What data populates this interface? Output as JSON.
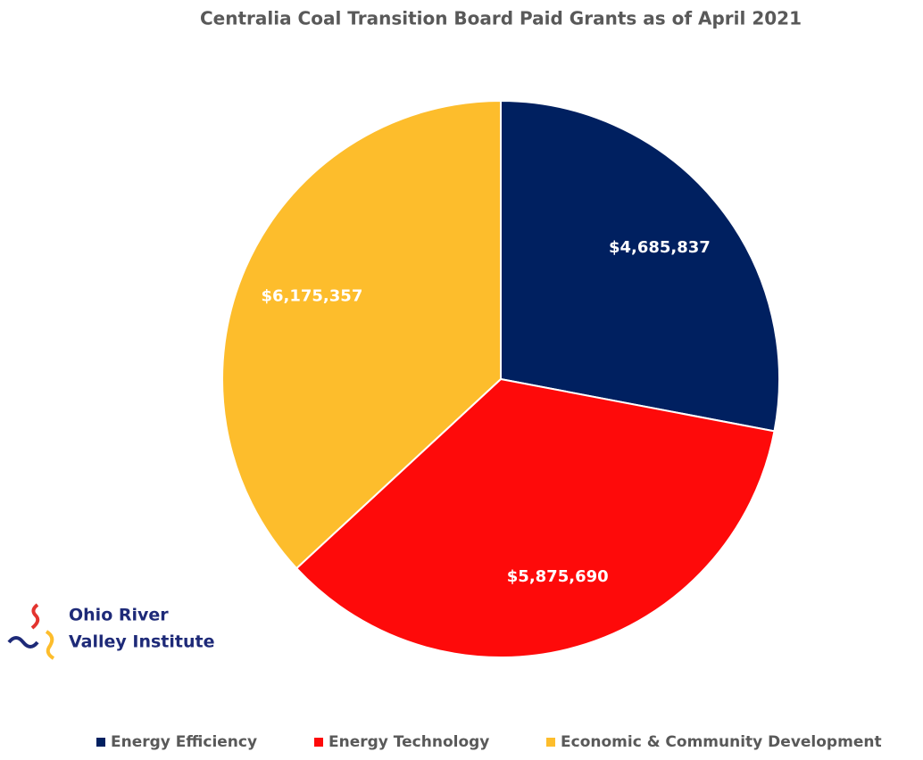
{
  "chart_data": {
    "type": "pie",
    "title": "Centralia Coal Transition Board Paid Grants as of April 2021",
    "categories": [
      "Energy Efficiency",
      "Energy Technology",
      "Economic & Community Development"
    ],
    "values": [
      4685837,
      5875690,
      6175357
    ],
    "value_labels": [
      "$4,685,837",
      "$5,875,690",
      "$6,175,357"
    ],
    "colors": [
      "#002060",
      "#fe0a0a",
      "#fdbd2c"
    ],
    "legend": "bottom",
    "logo": [
      "Ohio River",
      "Valley Institute"
    ]
  }
}
